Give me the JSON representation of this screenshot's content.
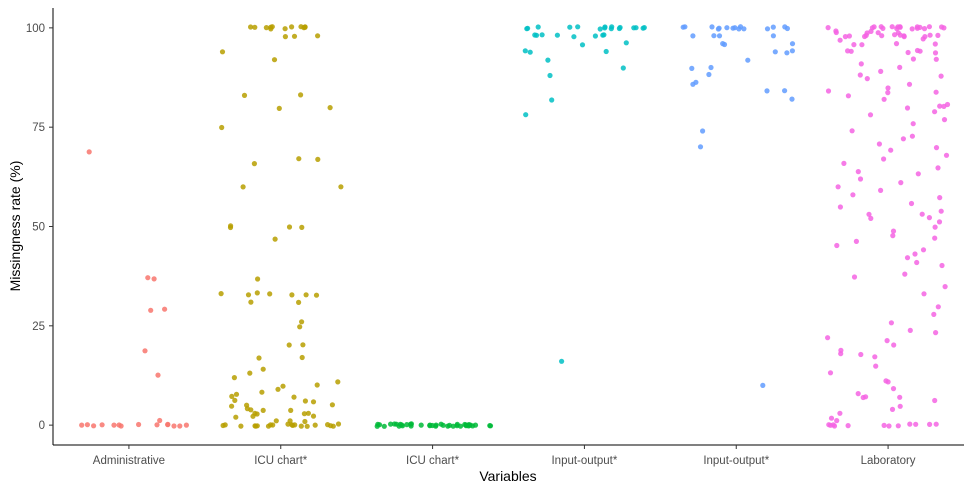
{
  "chart_data": {
    "type": "scatter",
    "xlabel": "Variables",
    "ylabel": "Missingness rate (%)",
    "ylim": [
      -5,
      105
    ],
    "yticks": [
      0,
      25,
      50,
      75,
      100
    ],
    "grid": false,
    "legend": "none",
    "categories": [
      "Administrative",
      "ICU chart*",
      "ICU chart*",
      "Input-output*",
      "Input-output*",
      "Laboratory"
    ],
    "series": [
      {
        "category_index": 0,
        "color": "#F8766D",
        "values": [
          37,
          19,
          29,
          69,
          37,
          12.5,
          29,
          0,
          0,
          0,
          0,
          0,
          0,
          0,
          0,
          0,
          0,
          0,
          0,
          1,
          0,
          0
        ]
      },
      {
        "category_index": 1,
        "color": "#B79F00",
        "values": [
          100,
          100,
          100,
          100,
          100,
          100,
          100,
          100,
          100,
          100,
          100,
          100,
          98,
          98,
          98,
          94,
          92,
          83,
          80,
          83,
          80,
          75,
          67,
          67,
          66,
          60,
          60,
          50,
          50,
          50,
          50,
          47,
          37,
          33,
          33,
          33,
          33,
          33,
          33,
          33,
          31,
          31,
          26,
          25,
          20,
          20,
          17,
          17,
          14,
          13,
          12,
          11,
          10,
          10,
          9,
          8,
          8,
          7,
          7,
          6,
          6,
          6,
          5,
          5,
          5,
          4,
          4,
          4,
          4,
          3,
          3,
          3,
          3,
          2,
          2,
          2,
          1,
          1,
          1,
          0,
          0,
          0,
          0,
          0,
          0,
          0,
          0,
          0,
          0,
          0,
          0,
          0,
          0,
          0,
          0,
          0,
          0,
          0,
          0
        ]
      },
      {
        "category_index": 2,
        "color": "#00BA38",
        "values": [
          0,
          0,
          0,
          0,
          0,
          0,
          0,
          0,
          0,
          0,
          0,
          0,
          0,
          0,
          0,
          0,
          0,
          0,
          0,
          0,
          0,
          0,
          0,
          0,
          0,
          0,
          0,
          0,
          0,
          0,
          0,
          0,
          0,
          0,
          0,
          0,
          0,
          0,
          0,
          0
        ]
      },
      {
        "category_index": 3,
        "color": "#00BFC4",
        "values": [
          100,
          100,
          100,
          100,
          100,
          100,
          100,
          100,
          100,
          100,
          100,
          100,
          100,
          100,
          100,
          100,
          98,
          98,
          98,
          98,
          98,
          98,
          98,
          98,
          96,
          96,
          94,
          94,
          94,
          92,
          90,
          88,
          82,
          78,
          16
        ]
      },
      {
        "category_index": 4,
        "color": "#619CFF",
        "values": [
          100,
          100,
          100,
          100,
          100,
          100,
          100,
          100,
          100,
          100,
          100,
          100,
          100,
          100,
          100,
          98,
          98,
          98,
          98,
          96,
          96,
          96,
          94,
          94,
          94,
          92,
          90,
          90,
          88,
          86,
          86,
          84,
          84,
          82,
          74,
          70,
          10
        ]
      },
      {
        "category_index": 5,
        "color": "#F564E3",
        "values": [
          100,
          100,
          100,
          100,
          100,
          100,
          100,
          100,
          100,
          100,
          100,
          100,
          100,
          100,
          100,
          100,
          100,
          100,
          99,
          99,
          99,
          99,
          99,
          99,
          98,
          98,
          98,
          98,
          98,
          98,
          98,
          98,
          98,
          98,
          98,
          98,
          97,
          97,
          96,
          96,
          96,
          96,
          94,
          94,
          94,
          94,
          94,
          94,
          92,
          92,
          91,
          90,
          89,
          88,
          88,
          87,
          86,
          85,
          84,
          84,
          84,
          83,
          82,
          81,
          80,
          80,
          80,
          79,
          78,
          77,
          76,
          74,
          73,
          72,
          71,
          70,
          69,
          68,
          67,
          66,
          65,
          64,
          63,
          62,
          61,
          60,
          59,
          58,
          57,
          56,
          55,
          54,
          53,
          53,
          52,
          52,
          51,
          50,
          49,
          48,
          47,
          46,
          45,
          44,
          43,
          42,
          41,
          40,
          38,
          37,
          35,
          33,
          30,
          28,
          26,
          24,
          23,
          22,
          21,
          20,
          19,
          18,
          18,
          17,
          15,
          13,
          11,
          11,
          9,
          8,
          7,
          7,
          7,
          6,
          5,
          4,
          3,
          2,
          1,
          0,
          0,
          0,
          0,
          0,
          0,
          0,
          0,
          0,
          0,
          0,
          0
        ]
      }
    ]
  }
}
